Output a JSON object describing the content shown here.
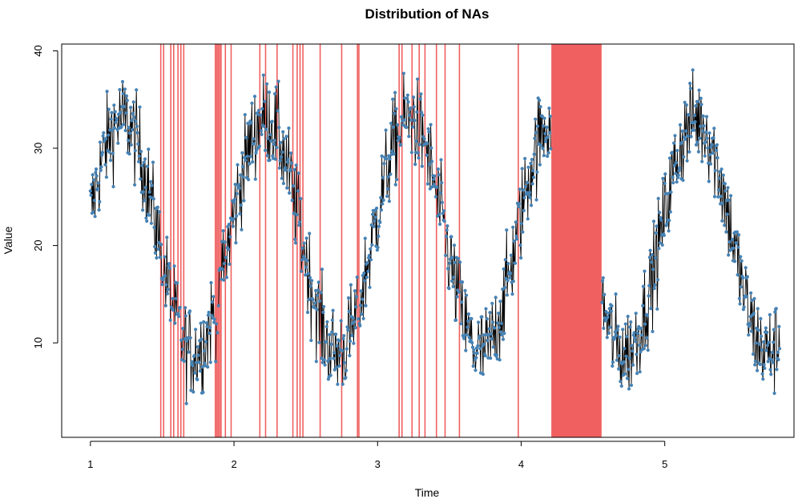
{
  "chart_data": {
    "type": "line",
    "title": "Distribution of NAs",
    "xlabel": "Time",
    "ylabel": "Value",
    "xlim": [
      0.8,
      5.9
    ],
    "ylim": [
      0.3,
      40.7
    ],
    "x_ticks": [
      1,
      2,
      3,
      4,
      5
    ],
    "y_ticks": [
      10,
      20,
      30,
      40
    ],
    "x_tick_labels": [
      "1",
      "2",
      "3",
      "4",
      "5"
    ],
    "y_tick_labels": [
      "10",
      "20",
      "30",
      "40"
    ],
    "grid": false,
    "legend": "none",
    "colors": {
      "line": "#000000",
      "points": "#4682b4",
      "na_bands": "#f06060",
      "axis": "#000000"
    },
    "series": {
      "x_start": 1.0,
      "x_end": 5.8,
      "count": 1200,
      "mean_level": 21,
      "amplitude": 12,
      "period": 1.0,
      "phase_peak_x": 1.22,
      "noise": 4
    },
    "na_lines_x": [
      1.49,
      1.51,
      1.56,
      1.58,
      1.61,
      1.63,
      1.65,
      1.87,
      1.88,
      1.89,
      1.9,
      1.91,
      1.94,
      1.98,
      2.18,
      2.22,
      2.3,
      2.41,
      2.44,
      2.46,
      2.48,
      2.6,
      2.75,
      2.86,
      2.87,
      3.15,
      3.17,
      3.24,
      3.29,
      3.33,
      3.41,
      3.47,
      3.57,
      3.98
    ],
    "na_band": [
      4.21,
      4.56
    ]
  }
}
